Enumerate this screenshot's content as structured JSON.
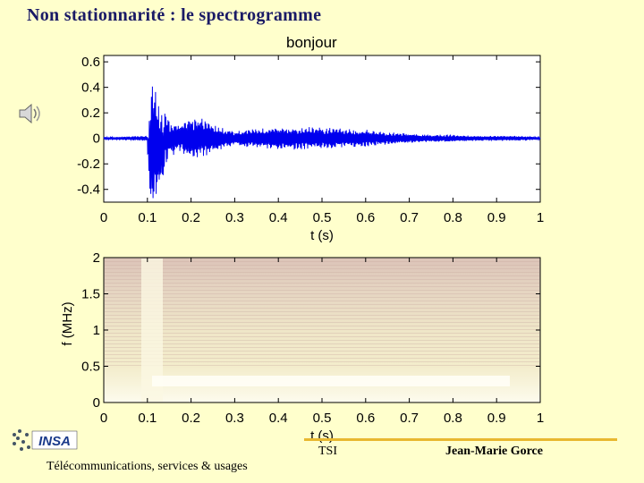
{
  "slide": {
    "title": "Non stationnarité : le spectrogramme",
    "footer_tsi": "TSI",
    "footer_author": "Jean-Marie Gorce",
    "footer_subtitle": "Télécommunications, services & usages",
    "logo_text": "INSA"
  },
  "icons": {
    "speaker": "speaker-icon",
    "logo": "insa-logo"
  },
  "colors": {
    "background": "#ffffcc",
    "signal": "#0000ee",
    "title": "#1a1a66",
    "accent": "#e8b830"
  },
  "chart_data": [
    {
      "type": "line",
      "title": "bonjour",
      "xlabel": "t (s)",
      "ylabel": "",
      "xlim": [
        0,
        1
      ],
      "ylim": [
        -0.5,
        0.65
      ],
      "xticks": [
        "0",
        "0.1",
        "0.2",
        "0.3",
        "0.4",
        "0.5",
        "0.6",
        "0.7",
        "0.8",
        "0.9",
        "1"
      ],
      "yticks": [
        "0.6",
        "0.4",
        "0.2",
        "0",
        "-0.2",
        "-0.4"
      ],
      "series": [
        {
          "x": [
            0,
            0.1,
            0.11,
            0.12,
            0.13,
            0.15,
            0.17,
            0.2,
            0.23,
            0.26,
            0.3,
            0.35,
            0.4,
            0.45,
            0.5,
            0.55,
            0.6,
            0.65,
            0.7,
            0.75,
            0.8,
            0.85,
            0.9,
            0.95,
            1.0
          ],
          "envelope": [
            0.01,
            0.02,
            0.6,
            0.45,
            0.32,
            0.14,
            0.12,
            0.16,
            0.16,
            0.1,
            0.06,
            0.08,
            0.09,
            0.09,
            0.09,
            0.08,
            0.07,
            0.05,
            0.04,
            0.03,
            0.03,
            0.02,
            0.02,
            0.02,
            0.01
          ]
        }
      ]
    },
    {
      "type": "heatmap",
      "title": "",
      "xlabel": "t (s)",
      "ylabel": "f (MHz)",
      "xlim": [
        0,
        1
      ],
      "ylim": [
        0,
        2
      ],
      "xticks": [
        "0",
        "0.1",
        "0.2",
        "0.3",
        "0.4",
        "0.5",
        "0.6",
        "0.7",
        "0.8",
        "0.9",
        "1"
      ],
      "yticks": [
        "2",
        "1.5",
        "1",
        "0.5",
        "0"
      ]
    }
  ]
}
